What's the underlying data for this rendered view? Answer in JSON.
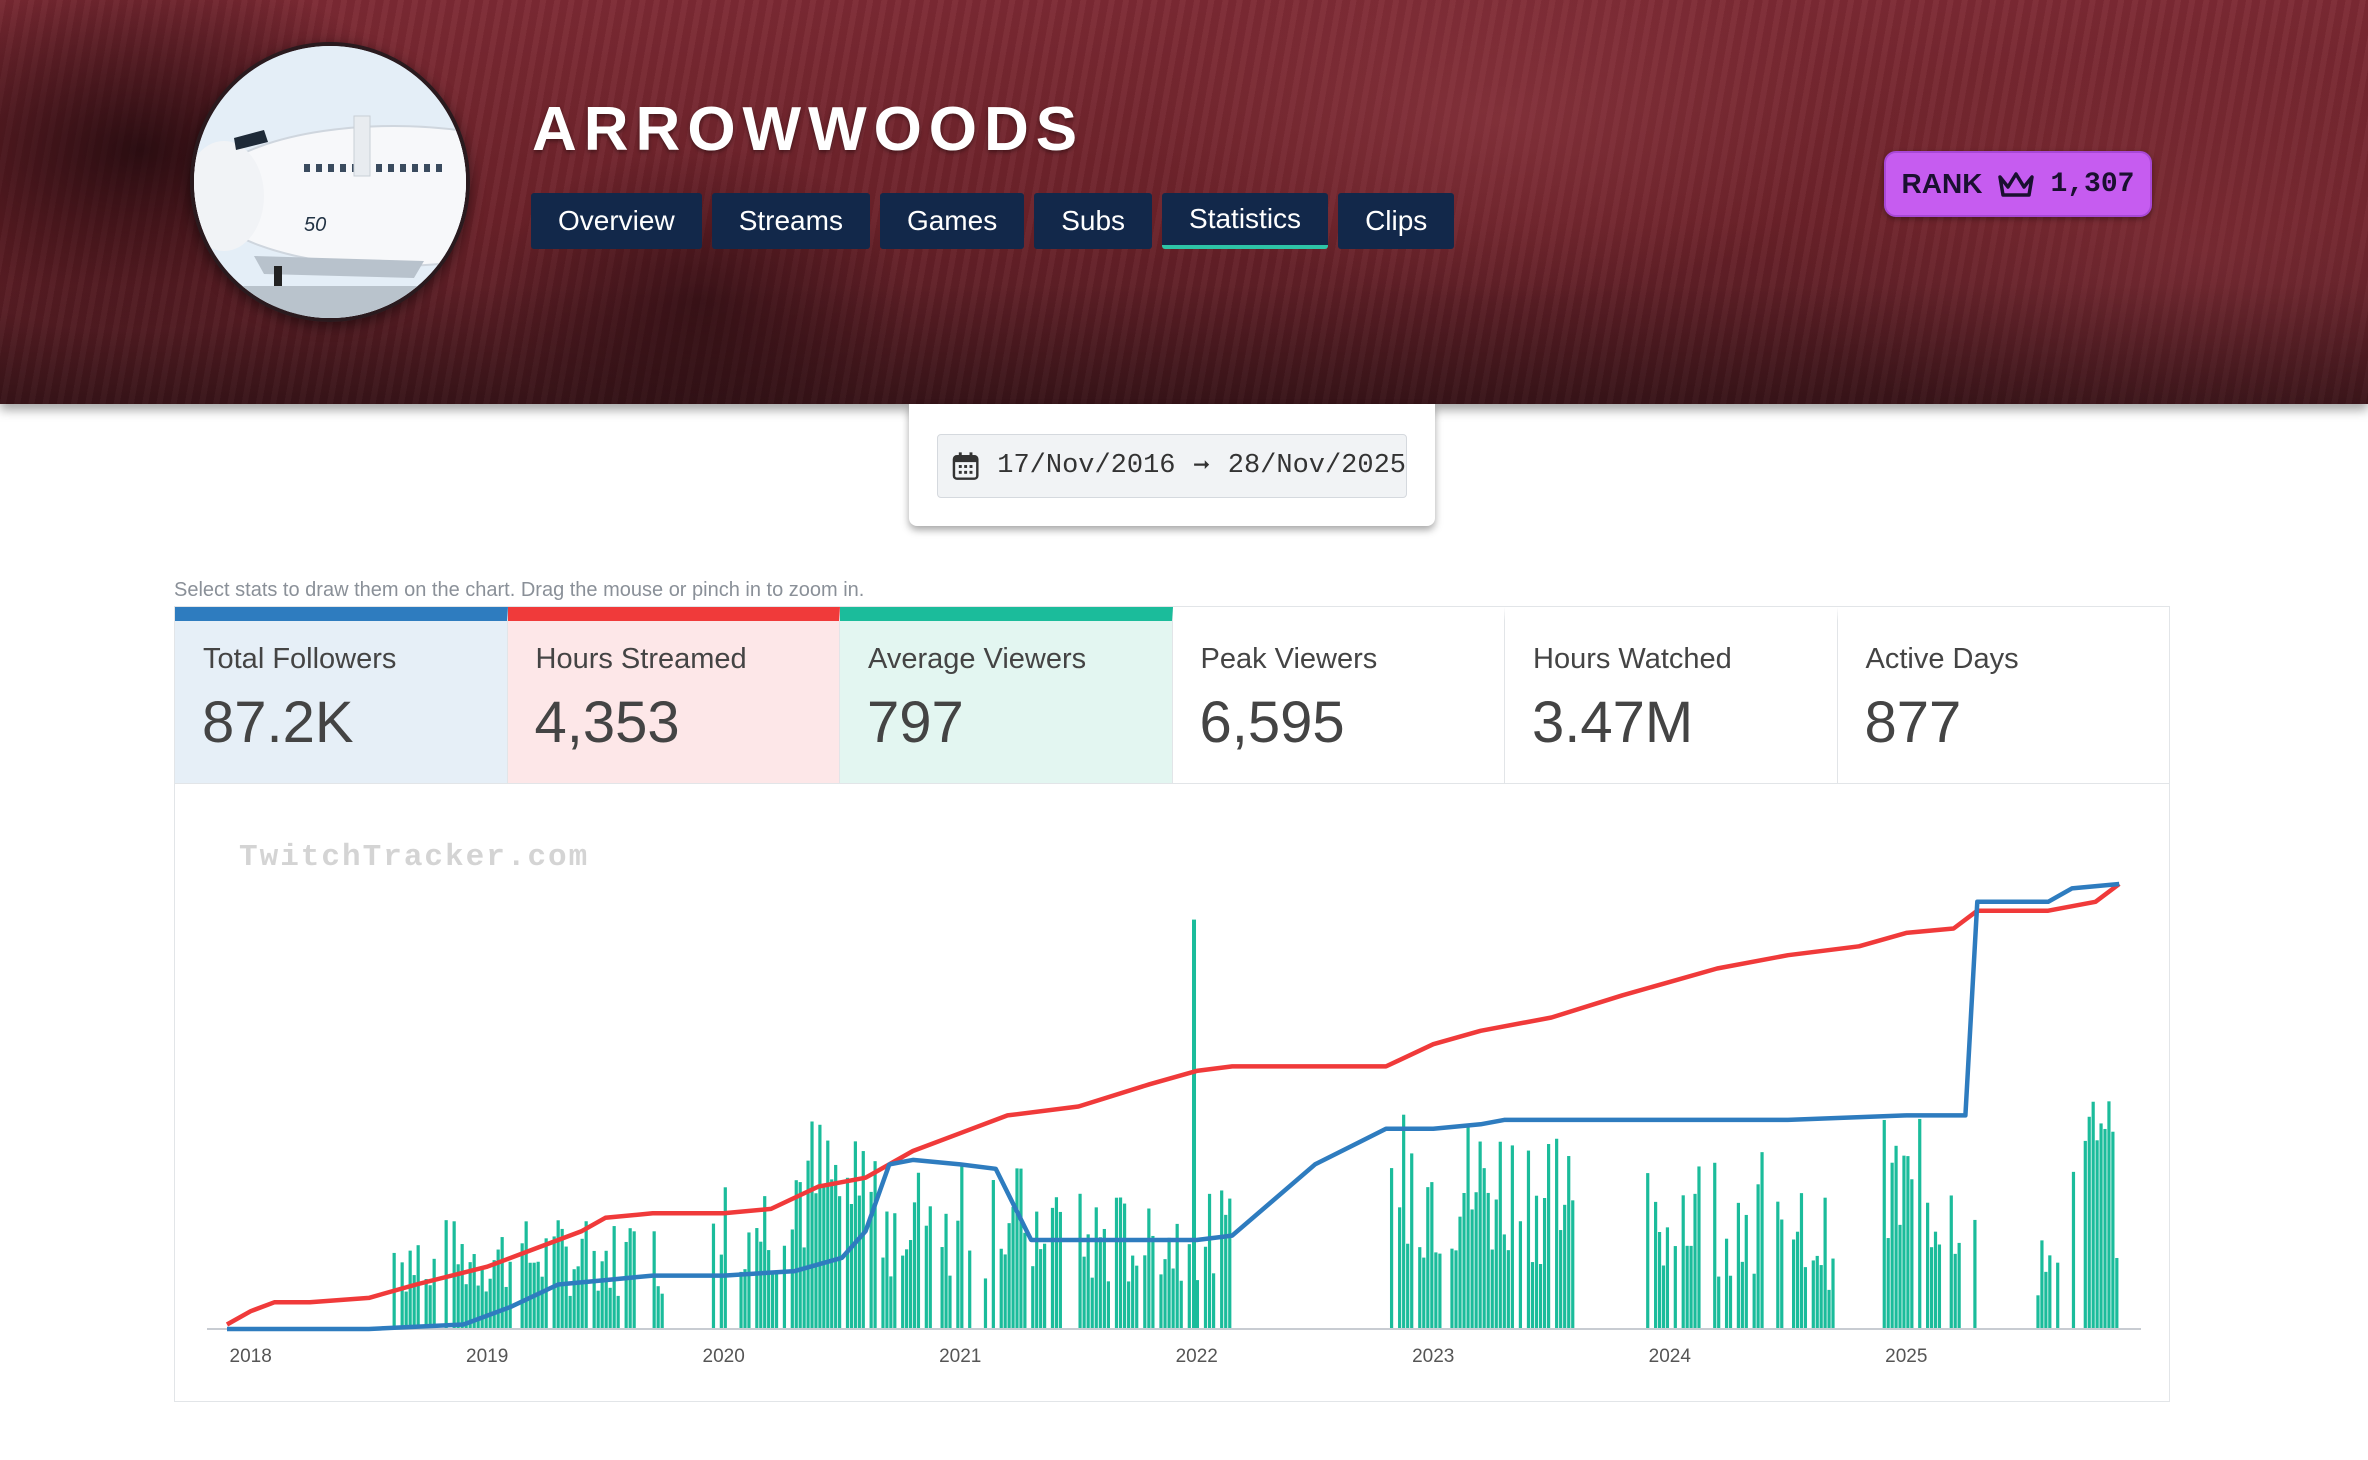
{
  "header": {
    "channel_name": "ARROWWOODS",
    "avatar_icon": "airplane-icon",
    "tabs": [
      {
        "label": "Overview",
        "active": false
      },
      {
        "label": "Streams",
        "active": false
      },
      {
        "label": "Games",
        "active": false
      },
      {
        "label": "Subs",
        "active": false
      },
      {
        "label": "Statistics",
        "active": true
      },
      {
        "label": "Clips",
        "active": false
      }
    ],
    "rank": {
      "label": "RANK",
      "icon": "crown-icon",
      "value": "1,307"
    }
  },
  "date_range": {
    "icon": "calendar-icon",
    "start": "17/Nov/2016",
    "arrow": "➞",
    "end": "28/Nov/2025"
  },
  "hint": "Select stats to draw them on the chart. Drag the mouse or pinch in to zoom in.",
  "stats": [
    {
      "label": "Total Followers",
      "value": "87.2K",
      "selected": true,
      "color": "#2e7cbf"
    },
    {
      "label": "Hours Streamed",
      "value": "4,353",
      "selected": true,
      "color": "#f03a3a"
    },
    {
      "label": "Average Viewers",
      "value": "797",
      "selected": true,
      "color": "#1bbc9b"
    },
    {
      "label": "Peak Viewers",
      "value": "6,595",
      "selected": false
    },
    {
      "label": "Hours Watched",
      "value": "3.47M",
      "selected": false
    },
    {
      "label": "Active Days",
      "value": "877",
      "selected": false
    }
  ],
  "chart_data": {
    "type": "line",
    "watermark": "TwitchTracker.com",
    "x_ticks": [
      "2018",
      "2019",
      "2020",
      "2021",
      "2022",
      "2023",
      "2024",
      "2025"
    ],
    "xlim": [
      2017.9,
      2025.95
    ],
    "grid": false,
    "legend": "none",
    "colors": {
      "followers": "#2e7cbf",
      "hours": "#f03a3a",
      "viewers": "#1bbc9b"
    },
    "series": [
      {
        "key": "hours",
        "values_note": "normalized",
        "points": [
          [
            2017.9,
            0.01
          ],
          [
            2018.0,
            0.04
          ],
          [
            2018.1,
            0.06
          ],
          [
            2018.25,
            0.06
          ],
          [
            2018.5,
            0.07
          ],
          [
            2018.7,
            0.1
          ],
          [
            2019.0,
            0.14
          ],
          [
            2019.2,
            0.18
          ],
          [
            2019.4,
            0.22
          ],
          [
            2019.5,
            0.25
          ],
          [
            2019.7,
            0.26
          ],
          [
            2020.0,
            0.26
          ],
          [
            2020.2,
            0.27
          ],
          [
            2020.4,
            0.32
          ],
          [
            2020.6,
            0.34
          ],
          [
            2020.8,
            0.4
          ],
          [
            2021.0,
            0.44
          ],
          [
            2021.2,
            0.48
          ],
          [
            2021.5,
            0.5
          ],
          [
            2021.8,
            0.55
          ],
          [
            2022.0,
            0.58
          ],
          [
            2022.15,
            0.59
          ],
          [
            2022.8,
            0.59
          ],
          [
            2023.0,
            0.64
          ],
          [
            2023.2,
            0.67
          ],
          [
            2023.5,
            0.7
          ],
          [
            2023.8,
            0.75
          ],
          [
            2024.0,
            0.78
          ],
          [
            2024.2,
            0.81
          ],
          [
            2024.5,
            0.84
          ],
          [
            2024.8,
            0.86
          ],
          [
            2025.0,
            0.89
          ],
          [
            2025.2,
            0.9
          ],
          [
            2025.3,
            0.94
          ],
          [
            2025.6,
            0.94
          ],
          [
            2025.8,
            0.96
          ],
          [
            2025.9,
            1.0
          ]
        ]
      },
      {
        "key": "followers",
        "values_note": "normalized",
        "points": [
          [
            2017.9,
            0.0
          ],
          [
            2018.5,
            0.0
          ],
          [
            2018.9,
            0.01
          ],
          [
            2019.1,
            0.05
          ],
          [
            2019.3,
            0.1
          ],
          [
            2019.5,
            0.11
          ],
          [
            2019.7,
            0.12
          ],
          [
            2020.0,
            0.12
          ],
          [
            2020.3,
            0.13
          ],
          [
            2020.5,
            0.16
          ],
          [
            2020.6,
            0.22
          ],
          [
            2020.7,
            0.37
          ],
          [
            2020.8,
            0.38
          ],
          [
            2021.0,
            0.37
          ],
          [
            2021.15,
            0.36
          ],
          [
            2021.3,
            0.2
          ],
          [
            2021.5,
            0.2
          ],
          [
            2022.0,
            0.2
          ],
          [
            2022.15,
            0.21
          ],
          [
            2022.5,
            0.37
          ],
          [
            2022.8,
            0.45
          ],
          [
            2023.0,
            0.45
          ],
          [
            2023.2,
            0.46
          ],
          [
            2023.3,
            0.47
          ],
          [
            2023.8,
            0.47
          ],
          [
            2024.5,
            0.47
          ],
          [
            2025.0,
            0.48
          ],
          [
            2025.25,
            0.48
          ],
          [
            2025.3,
            0.96
          ],
          [
            2025.6,
            0.96
          ],
          [
            2025.7,
            0.99
          ],
          [
            2025.9,
            1.0
          ]
        ]
      }
    ],
    "bars": {
      "key": "viewers",
      "values_note": "normalized average viewers per stream",
      "segments": [
        {
          "from": 2018.6,
          "to": 2019.75,
          "level": 0.2
        },
        {
          "from": 2019.95,
          "to": 2020.3,
          "level": 0.3
        },
        {
          "from": 2020.3,
          "to": 2020.65,
          "level": 0.4
        },
        {
          "from": 2020.65,
          "to": 2021.05,
          "level": 0.32
        },
        {
          "from": 2021.1,
          "to": 2021.45,
          "level": 0.3
        },
        {
          "from": 2021.5,
          "to": 2022.15,
          "level": 0.25
        },
        {
          "from": 2022.8,
          "to": 2023.6,
          "level": 0.4
        },
        {
          "from": 2023.9,
          "to": 2024.4,
          "level": 0.33
        },
        {
          "from": 2024.45,
          "to": 2024.7,
          "level": 0.25
        },
        {
          "from": 2024.9,
          "to": 2025.3,
          "level": 0.38
        },
        {
          "from": 2025.55,
          "to": 2025.65,
          "level": 0.18
        },
        {
          "from": 2025.7,
          "to": 2025.9,
          "level": 0.45
        }
      ],
      "spike": {
        "x": 2021.98,
        "level": 0.92
      }
    }
  }
}
